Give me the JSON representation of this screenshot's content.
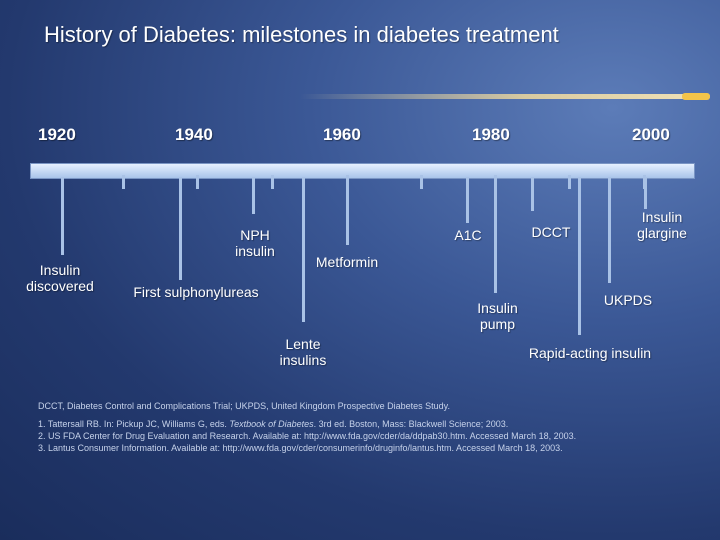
{
  "title": "History of Diabetes: milestones in diabetes treatment",
  "years": [
    "1920",
    "1940",
    "1960",
    "1980",
    "2000"
  ],
  "milestones": {
    "insulin_discovered": "Insulin discovered",
    "nph_insulin": "NPH insulin",
    "first_sulphonylureas": "First sulphonylureas",
    "lente_insulins": "Lente insulins",
    "metformin": "Metformin",
    "a1c": "A1C",
    "insulin_pump": "Insulin pump",
    "dcct": "DCCT",
    "rapid_acting_insulin": "Rapid-acting insulin",
    "ukpds": "UKPDS",
    "insulin_glargine": "Insulin glargine"
  },
  "footnotes": {
    "abbreviations": "DCCT, Diabetes Control and Complications Trial; UKPDS, United Kingdom Prospective Diabetes Study.",
    "ref1_pre": "1. Tattersall RB. In: Pickup JC, Williams G, eds.",
    "ref1_book": "Textbook of Diabetes",
    "ref1_post": ". 3rd ed. Boston, Mass: Blackwell Science; 2003.",
    "ref2": "2. US FDA Center for Drug Evaluation and Research. Available at: http://www.fda.gov/cder/da/ddpab30.htm. Accessed March 18, 2003.",
    "ref3": "3. Lantus Consumer Information. Available at: http://www.fda.gov/cder/consumerinfo/druginfo/lantus.htm. Accessed March 18, 2003."
  }
}
